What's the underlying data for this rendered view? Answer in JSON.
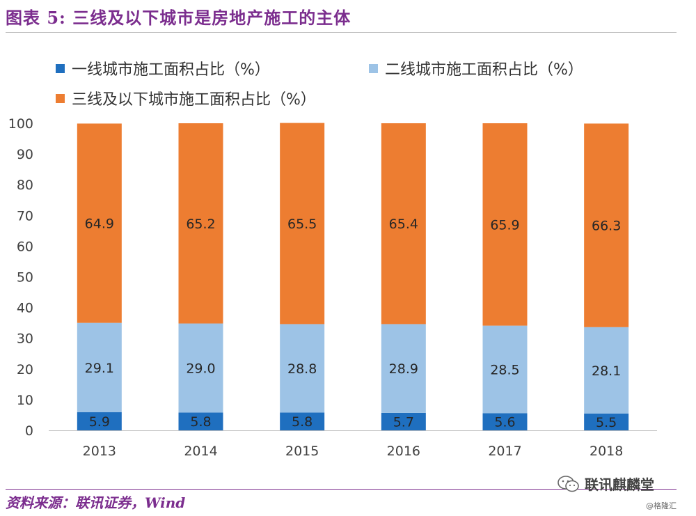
{
  "title": "图表 5: 三线及以下城市是房地产施工的主体",
  "source": "资料来源：联讯证券，Wind",
  "watermark": {
    "text": "联讯麒麟堂",
    "sub": "@格隆汇"
  },
  "colors": {
    "tier1": "#1F6FBF",
    "tier2": "#9DC3E6",
    "tier3": "#ED7D31",
    "title": "#7B2D8E"
  },
  "chart_data": {
    "type": "bar",
    "stacked": true,
    "categories": [
      "2013",
      "2014",
      "2015",
      "2016",
      "2017",
      "2018"
    ],
    "series": [
      {
        "name": "一线城市施工面积占比（%）",
        "values": [
          5.9,
          5.8,
          5.8,
          5.7,
          5.6,
          5.5
        ],
        "color": "#1F6FBF"
      },
      {
        "name": "二线城市施工面积占比（%）",
        "values": [
          29.1,
          29.0,
          28.8,
          28.9,
          28.5,
          28.1
        ],
        "color": "#9DC3E6"
      },
      {
        "name": "三线及以下城市施工面积占比（%）",
        "values": [
          64.9,
          65.2,
          65.5,
          65.4,
          65.9,
          66.3
        ],
        "color": "#ED7D31"
      }
    ],
    "data_labels": [
      [
        "5.9",
        "5.8",
        "5.8",
        "5.7",
        "5.6",
        "5.5"
      ],
      [
        "29.1",
        "29.0",
        "28.8",
        "28.9",
        "28.5",
        "28.1"
      ],
      [
        "64.9",
        "65.2",
        "65.5",
        "65.4",
        "65.9",
        "66.3"
      ]
    ],
    "yticks": [
      "0",
      "10",
      "20",
      "30",
      "40",
      "50",
      "60",
      "70",
      "80",
      "90",
      "100"
    ],
    "ylim": [
      0,
      100
    ],
    "grid": false,
    "legend_position": "top"
  }
}
